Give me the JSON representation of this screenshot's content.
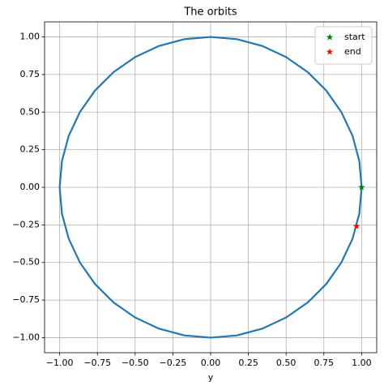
{
  "chart_data": {
    "type": "line",
    "title": "The orbits",
    "x_label": "y",
    "xlim": [
      -1.1,
      1.1
    ],
    "ylim": [
      -1.1,
      1.1
    ],
    "xticks": [
      {
        "value": -1,
        "label": "−1.00"
      },
      {
        "value": -0.75,
        "label": "−0.75"
      },
      {
        "value": -0.5,
        "label": "−0.50"
      },
      {
        "value": -0.25,
        "label": "−0.25"
      },
      {
        "value": 0,
        "label": "0.00"
      },
      {
        "value": 0.25,
        "label": "0.25"
      },
      {
        "value": 0.5,
        "label": "0.50"
      },
      {
        "value": 0.75,
        "label": "0.75"
      },
      {
        "value": 1,
        "label": "1.00"
      }
    ],
    "yticks": [
      {
        "value": -1,
        "label": "−1.00"
      },
      {
        "value": -0.75,
        "label": "−0.75"
      },
      {
        "value": -0.5,
        "label": "−0.50"
      },
      {
        "value": -0.25,
        "label": "−0.25"
      },
      {
        "value": 0,
        "label": "0.00"
      },
      {
        "value": 0.25,
        "label": "0.25"
      },
      {
        "value": 0.5,
        "label": "0.50"
      },
      {
        "value": 0.75,
        "label": "0.75"
      },
      {
        "value": 1,
        "label": "1.00"
      }
    ],
    "grid": true,
    "legend": "upper right",
    "series": [
      {
        "color": "#1f77b4",
        "marker": "none",
        "x": [
          1,
          0.985,
          0.94,
          0.866,
          0.766,
          0.643,
          0.5,
          0.342,
          0.174,
          0,
          -0.174,
          -0.342,
          -0.5,
          -0.643,
          -0.766,
          -0.866,
          -0.94,
          -0.985,
          -1,
          -0.985,
          -0.94,
          -0.866,
          -0.766,
          -0.643,
          -0.5,
          -0.342,
          -0.174,
          0,
          0.174,
          0.342,
          0.5,
          0.643,
          0.766,
          0.866,
          0.94,
          0.985,
          1
        ],
        "y": [
          0,
          0.174,
          0.342,
          0.5,
          0.643,
          0.766,
          0.866,
          0.94,
          0.985,
          1,
          0.985,
          0.94,
          0.866,
          0.766,
          0.643,
          0.5,
          0.342,
          0.174,
          0,
          -0.174,
          -0.342,
          -0.5,
          -0.643,
          -0.766,
          -0.866,
          -0.94,
          -0.985,
          -1,
          -0.985,
          -0.94,
          -0.866,
          -0.766,
          -0.643,
          -0.5,
          -0.342,
          -0.174,
          0
        ]
      },
      {
        "name": "start",
        "color": "green",
        "marker": "star",
        "x": [
          1
        ],
        "y": [
          0
        ]
      },
      {
        "name": "end",
        "color": "red",
        "marker": "star",
        "x": [
          0.966
        ],
        "y": [
          -0.259
        ]
      }
    ]
  }
}
